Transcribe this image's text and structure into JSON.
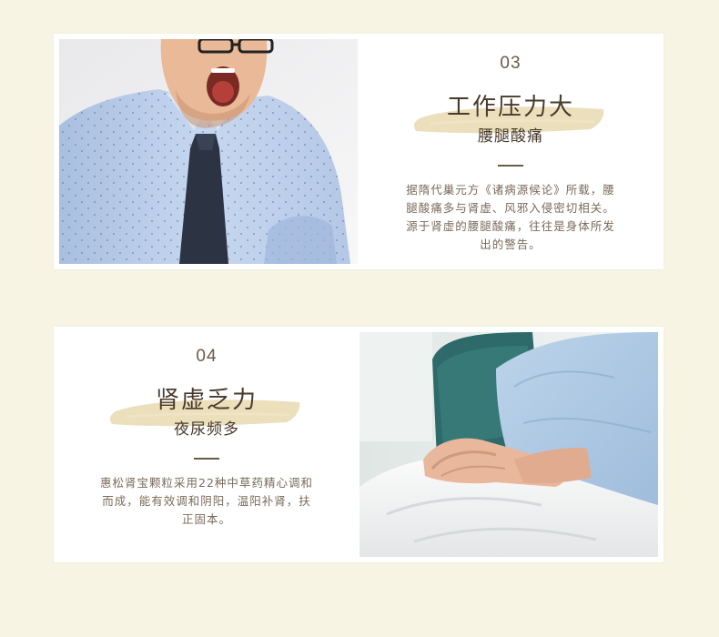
{
  "sections": [
    {
      "number": "03",
      "title": "工作压力大",
      "subtitle": "腰腿酸痛",
      "body": "据隋代巢元方《诸病源候论》所载，腰腿酸痛多与肾虚、风邪入侵密切相关。源于肾虚的腰腿酸痛，往往是身体所发出的警告。",
      "image": "yawning-man-photo"
    },
    {
      "number": "04",
      "title": "肾虚乏力",
      "subtitle": "夜尿频多",
      "body": "惠松肾宝颗粒采用22种中草药精心调和而成，能有效调和阴阳，温阳补肾，扶正固本。",
      "image": "patient-hands-photo"
    }
  ],
  "colors": {
    "background": "#f8f4e4",
    "card": "#ffffff",
    "title": "#4a3a2c",
    "body_text": "#7a6a5a",
    "brush": "#e8d9b0"
  }
}
